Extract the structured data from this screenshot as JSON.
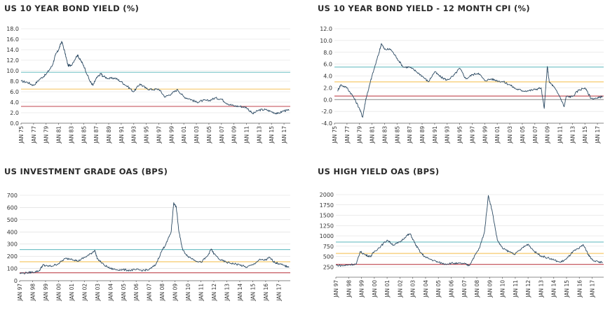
{
  "chart_data": [
    {
      "type": "line",
      "title": "US 10 YEAR BOND YIELD (%)",
      "xlabel": "",
      "ylabel": "",
      "ylim": [
        0,
        18
      ],
      "yticks": [
        "0.0",
        "2.0",
        "4.0",
        "6.0",
        "8.0",
        "10.0",
        "12.0",
        "14.0",
        "16.0",
        "18.0"
      ],
      "ytick_values": [
        0,
        2,
        4,
        6,
        8,
        10,
        12,
        14,
        16,
        18
      ],
      "xlim": [
        1975,
        2018
      ],
      "xticks": [
        "JAN 75",
        "JAN 77",
        "JAN 79",
        "JAN 81",
        "JAN 83",
        "JAN 85",
        "JAN 87",
        "JAN 89",
        "JAN 91",
        "JAN 93",
        "JAN 95",
        "JAN 97",
        "JAN 99",
        "JAN 01",
        "JAN 03",
        "JAN 05",
        "JAN 07",
        "JAN 09",
        "JAN 11",
        "JAN 13",
        "JAN 15",
        "JAN 17"
      ],
      "xtick_values": [
        1975,
        1977,
        1979,
        1981,
        1983,
        1985,
        1987,
        1989,
        1991,
        1993,
        1995,
        1997,
        1999,
        2001,
        2003,
        2005,
        2007,
        2009,
        2011,
        2013,
        2015,
        2017
      ],
      "reference_lines": [
        {
          "value": 9.7,
          "color": "#6dbfc4"
        },
        {
          "value": 6.5,
          "color": "#f5c35a"
        },
        {
          "value": 3.2,
          "color": "#c0464f"
        }
      ],
      "series_color": "#2c4a63",
      "x": [
        1975,
        1976,
        1977,
        1978,
        1979,
        1980,
        1980.5,
        1981,
        1981.5,
        1982,
        1982.5,
        1983,
        1984,
        1984.5,
        1985,
        1986,
        1986.5,
        1987,
        1987.8,
        1988,
        1989,
        1990,
        1991,
        1992,
        1993,
        1994,
        1995,
        1996,
        1997,
        1998,
        1999,
        2000,
        2001,
        2002,
        2003,
        2004,
        2005,
        2006,
        2007,
        2008,
        2009,
        2010,
        2011,
        2012,
        2013,
        2014,
        2015,
        2016,
        2017,
        2017.8
      ],
      "values": [
        8.0,
        7.8,
        7.2,
        8.4,
        9.3,
        11.0,
        13.0,
        14.0,
        15.6,
        13.5,
        11.0,
        11.0,
        13.0,
        12.0,
        11.0,
        8.0,
        7.2,
        8.5,
        9.5,
        9.0,
        8.5,
        8.6,
        7.9,
        7.0,
        6.0,
        7.5,
        6.6,
        6.4,
        6.5,
        5.0,
        5.6,
        6.4,
        5.0,
        4.6,
        4.0,
        4.3,
        4.3,
        4.8,
        4.6,
        3.7,
        3.3,
        3.2,
        3.0,
        1.8,
        2.5,
        2.6,
        2.2,
        1.8,
        2.4,
        2.4
      ]
    },
    {
      "type": "line",
      "title": "US 10 YEAR BOND YIELD - 12 MONTH CPI (%)",
      "xlabel": "",
      "ylabel": "",
      "ylim": [
        -4,
        12
      ],
      "yticks": [
        "-4.0",
        "-2.0",
        "0.0",
        "2.0",
        "4.0",
        "6.0",
        "8.0",
        "10.0",
        "12.0"
      ],
      "ytick_values": [
        -4,
        -2,
        0,
        2,
        4,
        6,
        8,
        10,
        12
      ],
      "xlim": [
        1975,
        2018
      ],
      "xticks": [
        "JAN 75",
        "JAN 77",
        "JAN 79",
        "JAN 81",
        "JAN 83",
        "JAN 85",
        "JAN 87",
        "JAN 89",
        "JAN 91",
        "JAN 93",
        "JAN 95",
        "JAN 97",
        "JAN 99",
        "JAN 01",
        "JAN 03",
        "JAN 05",
        "JAN 07",
        "JAN 09",
        "JAN 11",
        "JAN 13",
        "JAN 15",
        "JAN 17"
      ],
      "xtick_values": [
        1975,
        1977,
        1979,
        1981,
        1983,
        1985,
        1987,
        1989,
        1991,
        1993,
        1995,
        1997,
        1999,
        2001,
        2003,
        2005,
        2007,
        2009,
        2011,
        2013,
        2015,
        2017
      ],
      "reference_lines": [
        {
          "value": 5.5,
          "color": "#6dbfc4"
        },
        {
          "value": 3.0,
          "color": "#f5c35a"
        },
        {
          "value": 0.6,
          "color": "#c0464f"
        },
        {
          "value": 0.0,
          "color": "#888888"
        }
      ],
      "series_color": "#2c4a63",
      "x": [
        1975.5,
        1976,
        1977,
        1978,
        1979,
        1979.5,
        1980,
        1980.5,
        1981,
        1982,
        1982.5,
        1983,
        1984,
        1985,
        1986,
        1987,
        1988,
        1989,
        1990,
        1991,
        1992,
        1993,
        1994,
        1995,
        1996,
        1997,
        1998,
        1999,
        2000,
        2001,
        2002,
        2003,
        2004,
        2005,
        2006,
        2007,
        2008,
        2008.5,
        2009,
        2009.3,
        2010,
        2011,
        2011.7,
        2012,
        2013,
        2014,
        2015,
        2016,
        2017,
        2017.8
      ],
      "values": [
        1.5,
        2.5,
        2.0,
        0.5,
        -1.5,
        -3.0,
        0.0,
        2.0,
        4.0,
        7.5,
        9.5,
        8.5,
        8.5,
        7.0,
        5.5,
        5.5,
        4.8,
        4.0,
        3.0,
        4.7,
        3.8,
        3.3,
        4.0,
        5.3,
        3.5,
        4.2,
        4.5,
        3.2,
        3.5,
        3.2,
        3.0,
        2.5,
        1.8,
        1.5,
        1.5,
        1.7,
        2.0,
        -1.5,
        5.6,
        3.0,
        2.2,
        0.5,
        -1.2,
        0.5,
        0.5,
        1.6,
        2.0,
        0.2,
        0.2,
        0.6
      ]
    },
    {
      "type": "line",
      "title": "US INVESTMENT GRADE OAS (BPS)",
      "xlabel": "",
      "ylabel": "",
      "ylim": [
        0,
        700
      ],
      "yticks": [
        "0",
        "100",
        "200",
        "300",
        "400",
        "500",
        "600",
        "700"
      ],
      "ytick_values": [
        0,
        100,
        200,
        300,
        400,
        500,
        600,
        700
      ],
      "xlim": [
        1997,
        2017.9
      ],
      "xticks": [
        "JAN 97",
        "JAN 98",
        "JAN 99",
        "JAN 00",
        "JAN 01",
        "JAN 02",
        "JAN 03",
        "JAN 04",
        "JAN 05",
        "JAN 06",
        "JAN 07",
        "JAN 08",
        "JAN 09",
        "JAN 10",
        "JAN 11",
        "JAN 12",
        "JAN 13",
        "JAN 14",
        "JAN 15",
        "JAN 16",
        "JAN 17"
      ],
      "xtick_values": [
        1997,
        1998,
        1999,
        2000,
        2001,
        2002,
        2003,
        2004,
        2005,
        2006,
        2007,
        2008,
        2009,
        2010,
        2011,
        2012,
        2013,
        2014,
        2015,
        2016,
        2017
      ],
      "reference_lines": [
        {
          "value": 255,
          "color": "#6dbfc4"
        },
        {
          "value": 155,
          "color": "#f5c35a"
        },
        {
          "value": 65,
          "color": "#c0464f"
        }
      ],
      "series_color": "#2c4a63",
      "x": [
        1997,
        1997.6,
        1998,
        1998.5,
        1998.8,
        1999,
        1999.5,
        2000,
        2000.5,
        2001,
        2001.5,
        2002,
        2002.5,
        2002.8,
        2003,
        2003.5,
        2004,
        2004.5,
        2005,
        2005.5,
        2006,
        2006.5,
        2007,
        2007.5,
        2008,
        2008.3,
        2008.7,
        2008.9,
        2009.1,
        2009.3,
        2009.6,
        2010,
        2010.5,
        2011,
        2011.5,
        2011.8,
        2012,
        2012.5,
        2013,
        2013.5,
        2014,
        2014.5,
        2015,
        2015.5,
        2016,
        2016.3,
        2016.7,
        2017,
        2017.5,
        2017.8
      ],
      "values": [
        60,
        65,
        70,
        80,
        130,
        120,
        120,
        140,
        180,
        180,
        160,
        190,
        220,
        250,
        180,
        130,
        100,
        90,
        90,
        85,
        90,
        85,
        90,
        130,
        250,
        300,
        400,
        640,
        600,
        400,
        250,
        200,
        170,
        150,
        200,
        260,
        220,
        170,
        150,
        140,
        130,
        110,
        130,
        170,
        170,
        190,
        150,
        140,
        120,
        115
      ]
    },
    {
      "type": "line",
      "title": "US HIGH YIELD OAS (BPS)",
      "xlabel": "",
      "ylabel": "",
      "ylim": [
        0,
        2000
      ],
      "yticks": [
        "250",
        "500",
        "750",
        "1000",
        "1250",
        "1500",
        "1750",
        "2000"
      ],
      "ytick_values": [
        250,
        500,
        750,
        1000,
        1250,
        1500,
        1750,
        2000
      ],
      "xlim": [
        1997,
        2017.9
      ],
      "xticks": [
        "JAN 97",
        "JAN 98",
        "JAN 99",
        "JAN 00",
        "JAN 01",
        "JAN 02",
        "JAN 03",
        "JAN 04",
        "JAN 05",
        "JAN 06",
        "JAN 07",
        "JAN 08",
        "JAN 09",
        "JAN 10",
        "JAN 11",
        "JAN 12",
        "JAN 13",
        "JAN 14",
        "JAN 15",
        "JAN 16",
        "JAN 17"
      ],
      "xtick_values": [
        1997,
        1998,
        1999,
        2000,
        2001,
        2002,
        2003,
        2004,
        2005,
        2006,
        2007,
        2008,
        2009,
        2010,
        2011,
        2012,
        2013,
        2014,
        2015,
        2016,
        2017
      ],
      "reference_lines": [
        {
          "value": 850,
          "color": "#6dbfc4"
        },
        {
          "value": 575,
          "color": "#f5c35a"
        },
        {
          "value": 310,
          "color": "#c0464f"
        }
      ],
      "series_color": "#2c4a63",
      "x": [
        1997,
        1997.6,
        1998,
        1998.6,
        1998.9,
        1999.3,
        1999.7,
        2000,
        2000.5,
        2001,
        2001.5,
        2002,
        2002.5,
        2002.8,
        2003.2,
        2003.6,
        2004,
        2004.5,
        2005,
        2005.5,
        2006,
        2006.5,
        2007,
        2007.4,
        2007.8,
        2008.2,
        2008.6,
        2008.9,
        2009.2,
        2009.6,
        2010,
        2010.5,
        2011,
        2011.6,
        2012,
        2012.5,
        2013,
        2013.5,
        2014,
        2014.5,
        2015,
        2015.5,
        2016,
        2016.3,
        2016.7,
        2017,
        2017.5,
        2017.8
      ],
      "values": [
        290,
        280,
        300,
        320,
        620,
        540,
        500,
        620,
        750,
        900,
        780,
        850,
        1000,
        1050,
        800,
        600,
        480,
        420,
        360,
        320,
        340,
        330,
        330,
        280,
        500,
        700,
        1100,
        1980,
        1600,
        900,
        700,
        620,
        560,
        720,
        800,
        620,
        520,
        470,
        420,
        360,
        440,
        620,
        700,
        790,
        550,
        420,
        370,
        360
      ]
    }
  ]
}
